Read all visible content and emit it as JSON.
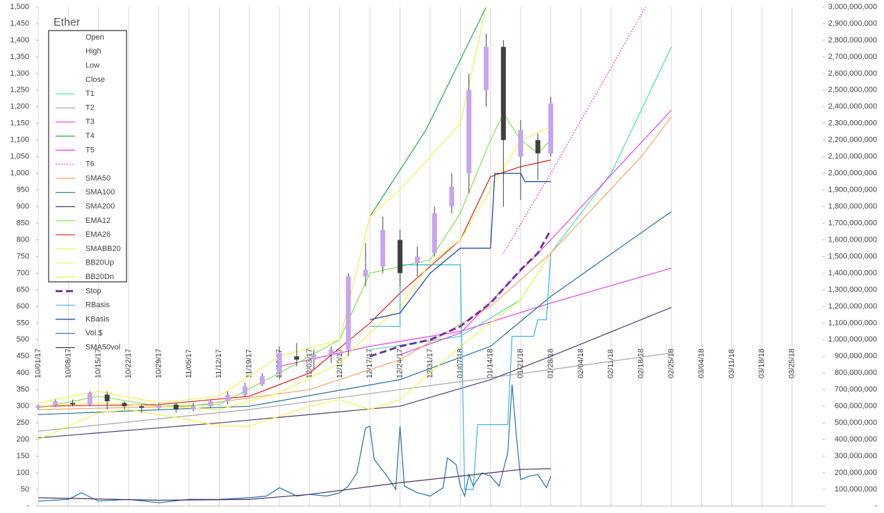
{
  "chart_data": {
    "type": "candlestick",
    "title": "Ether",
    "grid": "x",
    "up_color": "#c9a3ef",
    "down_color": "#3f3f3f",
    "xlim": [
      0,
      182
    ],
    "xticks": [
      {
        "value": 0,
        "label": "10/01/17"
      },
      {
        "value": 7,
        "label": "10/08/17"
      },
      {
        "value": 14,
        "label": "10/15/17"
      },
      {
        "value": 21,
        "label": "10/22/17"
      },
      {
        "value": 28,
        "label": "10/29/17"
      },
      {
        "value": 35,
        "label": "11/05/17"
      },
      {
        "value": 42,
        "label": "11/12/17"
      },
      {
        "value": 49,
        "label": "11/19/17"
      },
      {
        "value": 56,
        "label": "11/26/17"
      },
      {
        "value": 63,
        "label": "12/03/17"
      },
      {
        "value": 70,
        "label": "12/10/17"
      },
      {
        "value": 77,
        "label": "12/17/17"
      },
      {
        "value": 84,
        "label": "12/24/17"
      },
      {
        "value": 91,
        "label": "12/31/17"
      },
      {
        "value": 98,
        "label": "01/07/18"
      },
      {
        "value": 105,
        "label": "01/14/18"
      },
      {
        "value": 112,
        "label": "01/21/18"
      },
      {
        "value": 119,
        "label": "01/28/18"
      },
      {
        "value": 126,
        "label": "02/04/18"
      },
      {
        "value": 133,
        "label": "02/11/18"
      },
      {
        "value": 140,
        "label": "02/18/18"
      },
      {
        "value": 147,
        "label": "02/25/18"
      },
      {
        "value": 154,
        "label": "03/04/18"
      },
      {
        "value": 161,
        "label": "03/11/18"
      },
      {
        "value": 168,
        "label": "03/18/18"
      },
      {
        "value": 175,
        "label": "03/25/18"
      }
    ],
    "ylim": [
      0,
      1500
    ],
    "yticks": [
      {
        "value": 0,
        "label": "-"
      },
      50,
      100,
      150,
      200,
      250,
      300,
      350,
      400,
      450,
      500,
      550,
      600,
      650,
      700,
      750,
      800,
      850,
      900,
      950,
      {
        "value": 1000,
        "label": "1,000"
      },
      {
        "value": 1050,
        "label": "1,050"
      },
      {
        "value": 1100,
        "label": "1,100"
      },
      {
        "value": 1150,
        "label": "1,150"
      },
      {
        "value": 1200,
        "label": "1,200"
      },
      {
        "value": 1250,
        "label": "1,250"
      },
      {
        "value": 1300,
        "label": "1,300"
      },
      {
        "value": 1350,
        "label": "1,350"
      },
      {
        "value": 1400,
        "label": "1,400"
      },
      {
        "value": 1450,
        "label": "1,450"
      },
      {
        "value": 1500,
        "label": "1,500"
      }
    ],
    "y2lim": [
      0,
      3000000000
    ],
    "y2ticks": [
      {
        "value": 0,
        "label": "-"
      },
      {
        "value": 100000000,
        "label": "100,000,000"
      },
      {
        "value": 200000000,
        "label": "200,000,000"
      },
      {
        "value": 300000000,
        "label": "300,000,000"
      },
      {
        "value": 400000000,
        "label": "400,000,000"
      },
      {
        "value": 500000000,
        "label": "500,000,000"
      },
      {
        "value": 600000000,
        "label": "600,000,000"
      },
      {
        "value": 700000000,
        "label": "700,000,000"
      },
      {
        "value": 800000000,
        "label": "800,000,000"
      },
      {
        "value": 900000000,
        "label": "900,000,000"
      },
      {
        "value": 1000000000,
        "label": "1,000,000,000"
      },
      {
        "value": 1100000000,
        "label": "1,100,000,000"
      },
      {
        "value": 1200000000,
        "label": "1,200,000,000"
      },
      {
        "value": 1300000000,
        "label": "1,300,000,000"
      },
      {
        "value": 1400000000,
        "label": "1,400,000,000"
      },
      {
        "value": 1500000000,
        "label": "1,500,000,000"
      },
      {
        "value": 1600000000,
        "label": "1,600,000,000"
      },
      {
        "value": 1700000000,
        "label": "1,700,000,000"
      },
      {
        "value": 1800000000,
        "label": "1,800,000,000"
      },
      {
        "value": 1900000000,
        "label": "1,900,000,000"
      },
      {
        "value": 2000000000,
        "label": "2,000,000,000"
      },
      {
        "value": 2100000000,
        "label": "2,100,000,000"
      },
      {
        "value": 2200000000,
        "label": "2,200,000,000"
      },
      {
        "value": 2300000000,
        "label": "2,300,000,000"
      },
      {
        "value": 2400000000,
        "label": "2,400,000,000"
      },
      {
        "value": 2500000000,
        "label": "2,500,000,000"
      },
      {
        "value": 2600000000,
        "label": "2,600,000,000"
      },
      {
        "value": 2700000000,
        "label": "2,700,000,000"
      },
      {
        "value": 2800000000,
        "label": "2,800,000,000"
      },
      {
        "value": 2900000000,
        "label": "2,900,000,000"
      },
      {
        "value": 3000000000,
        "label": "3,000,000,000"
      }
    ],
    "x": [
      0,
      4,
      8,
      12,
      16,
      20,
      24,
      28,
      32,
      36,
      40,
      44,
      48,
      52,
      56,
      60,
      64,
      68,
      72,
      76,
      80,
      84,
      88,
      92,
      96,
      100,
      104,
      108,
      112,
      116,
      119
    ],
    "series": [
      {
        "name": "Open",
        "values": [
          295,
          302,
          310,
          305,
          335,
          310,
          300,
          295,
          305,
          290,
          300,
          315,
          335,
          365,
          400,
          450,
          440,
          455,
          470,
          690,
          720,
          800,
          730,
          760,
          900,
          1000,
          1250,
          1380,
          1050,
          1100,
          1060
        ]
      },
      {
        "name": "High",
        "values": [
          305,
          320,
          320,
          345,
          345,
          315,
          305,
          310,
          310,
          310,
          320,
          345,
          370,
          400,
          480,
          490,
          470,
          480,
          700,
          790,
          870,
          830,
          780,
          900,
          1000,
          1300,
          1420,
          1400,
          1160,
          1120,
          1230
        ]
      },
      {
        "name": "Low",
        "values": [
          290,
          298,
          300,
          300,
          290,
          290,
          280,
          290,
          280,
          285,
          295,
          305,
          330,
          360,
          380,
          420,
          410,
          430,
          450,
          660,
          700,
          660,
          690,
          750,
          880,
          940,
          1200,
          900,
          920,
          980,
          1050
        ]
      },
      {
        "name": "Close",
        "values": [
          302,
          315,
          305,
          340,
          315,
          300,
          295,
          305,
          290,
          300,
          315,
          335,
          360,
          390,
          460,
          440,
          455,
          470,
          690,
          710,
          830,
          700,
          750,
          880,
          960,
          1250,
          1380,
          1100,
          1130,
          1060,
          1210
        ]
      },
      {
        "name": "T1",
        "color": "#3fe0b0",
        "x": [
          77,
          98,
          112,
          119,
          133,
          147
        ],
        "values": [
          470,
          510,
          620,
          760,
          1000,
          1380
        ]
      },
      {
        "name": "T2",
        "color": "#a6a6a6",
        "x": [
          0,
          49,
          84,
          119,
          147
        ],
        "values": [
          225,
          290,
          350,
          410,
          460
        ]
      },
      {
        "name": "T3",
        "color": "#e83ee8",
        "x": [
          56,
          77,
          98,
          119,
          147
        ],
        "values": [
          420,
          480,
          525,
          610,
          715
        ]
      },
      {
        "name": "T4",
        "color": "#22a84a",
        "x": [
          77,
          90,
          104
        ],
        "values": [
          870,
          1130,
          1500
        ]
      },
      {
        "name": "T5",
        "color": "#e83ee8",
        "x": [
          84,
          98,
          119,
          147
        ],
        "values": [
          455,
          520,
          800,
          1190
        ]
      },
      {
        "name": "T6",
        "color": "#e83ee8",
        "dash": "dotted",
        "x": [
          108,
          119,
          141
        ],
        "values": [
          760,
          1000,
          1500
        ]
      },
      {
        "name": "SMA50",
        "color": "#f4a460",
        "x": [
          0,
          35,
          63,
          84,
          105,
          119,
          140,
          147
        ],
        "values": [
          290,
          300,
          350,
          440,
          600,
          760,
          1050,
          1170
        ]
      },
      {
        "name": "SMA100",
        "color": "#1f6f9f",
        "x": [
          0,
          49,
          84,
          105,
          119,
          147
        ],
        "values": [
          275,
          300,
          380,
          480,
          630,
          885
        ]
      },
      {
        "name": "SMA200",
        "color": "#4b3a6b",
        "x": [
          0,
          42,
          84,
          105,
          119,
          147
        ],
        "values": [
          205,
          250,
          300,
          380,
          450,
          597
        ]
      },
      {
        "name": "EMA12",
        "color": "#7ce84a",
        "x": [
          0,
          14,
          28,
          42,
          56,
          70,
          77,
          84,
          91,
          98,
          105,
          108,
          112,
          116,
          119
        ],
        "values": [
          295,
          330,
          300,
          305,
          400,
          500,
          700,
          720,
          740,
          880,
          1100,
          1180,
          1100,
          1060,
          1100
        ]
      },
      {
        "name": "EMA26",
        "color": "#e01818",
        "x": [
          0,
          28,
          49,
          63,
          77,
          84,
          98,
          105,
          112,
          119
        ],
        "values": [
          300,
          305,
          330,
          400,
          550,
          640,
          800,
          990,
          1020,
          1040
        ]
      },
      {
        "name": "SMABB20",
        "color": "#f2f24a",
        "x": [
          0,
          14,
          28,
          42,
          56,
          70,
          77,
          84,
          91,
          98,
          105,
          112,
          119
        ],
        "values": [
          300,
          310,
          300,
          290,
          340,
          430,
          520,
          600,
          730,
          800,
          950,
          1100,
          1140
        ]
      },
      {
        "name": "BB20Up",
        "color": "#f2f24a",
        "x": [
          0,
          14,
          28,
          42,
          56,
          70,
          77,
          84,
          91,
          98,
          104
        ],
        "values": [
          310,
          345,
          310,
          330,
          450,
          500,
          870,
          950,
          1050,
          1150,
          1500
        ]
      },
      {
        "name": "BB20Dn",
        "color": "#f2f24a",
        "x": [
          0,
          14,
          21,
          35,
          42,
          49,
          56,
          63,
          70,
          77,
          84,
          91,
          98,
          105,
          112,
          119
        ],
        "values": [
          200,
          280,
          290,
          260,
          240,
          240,
          270,
          300,
          320,
          290,
          320,
          400,
          480,
          550,
          620,
          760
        ]
      },
      {
        "name": "Stop",
        "color": "#7030a0",
        "dash": "dashed",
        "x": [
          77,
          84,
          91,
          98,
          105,
          112,
          116,
          119
        ],
        "values": [
          450,
          480,
          500,
          540,
          610,
          710,
          760,
          830
        ]
      },
      {
        "name": "RBasis",
        "color": "#33b5e5",
        "x": [
          77,
          84,
          84,
          98,
          99,
          101,
          102,
          109,
          110,
          115,
          116,
          118,
          119
        ],
        "values": [
          540,
          540,
          725,
          725,
          50,
          50,
          245,
          245,
          510,
          510,
          560,
          560,
          760
        ]
      },
      {
        "name": "KBasis",
        "color": "#0a3a9a",
        "x": [
          77,
          84,
          91,
          98,
          105,
          106,
          112,
          113,
          119
        ],
        "values": [
          560,
          580,
          700,
          775,
          775,
          1000,
          1000,
          975,
          975
        ]
      },
      {
        "name": "Vol $",
        "color": "#1f6fb0",
        "axis": "y2",
        "x": [
          0,
          7,
          10,
          14,
          21,
          28,
          35,
          42,
          49,
          53,
          56,
          60,
          63,
          67,
          70,
          72,
          74,
          76,
          77,
          78,
          81,
          83,
          84,
          85,
          88,
          91,
          94,
          95,
          97,
          98,
          99,
          100,
          101,
          103,
          105,
          107,
          109,
          110,
          111,
          112,
          114,
          116,
          118,
          119
        ],
        "values": [
          30000000,
          40000000,
          80000000,
          30000000,
          40000000,
          20000000,
          40000000,
          40000000,
          50000000,
          60000000,
          110000000,
          60000000,
          70000000,
          60000000,
          80000000,
          120000000,
          200000000,
          470000000,
          480000000,
          280000000,
          180000000,
          100000000,
          480000000,
          120000000,
          80000000,
          60000000,
          110000000,
          290000000,
          250000000,
          120000000,
          60000000,
          190000000,
          120000000,
          200000000,
          180000000,
          120000000,
          320000000,
          730000000,
          420000000,
          160000000,
          180000000,
          190000000,
          110000000,
          180000000
        ]
      },
      {
        "name": "SMA50vol",
        "color": "#4b2e5e",
        "axis": "y2",
        "x": [
          0,
          28,
          49,
          63,
          84,
          98,
          105,
          112,
          119
        ],
        "values": [
          50000000,
          35000000,
          40000000,
          70000000,
          140000000,
          180000000,
          200000000,
          220000000,
          225000000
        ]
      }
    ]
  }
}
